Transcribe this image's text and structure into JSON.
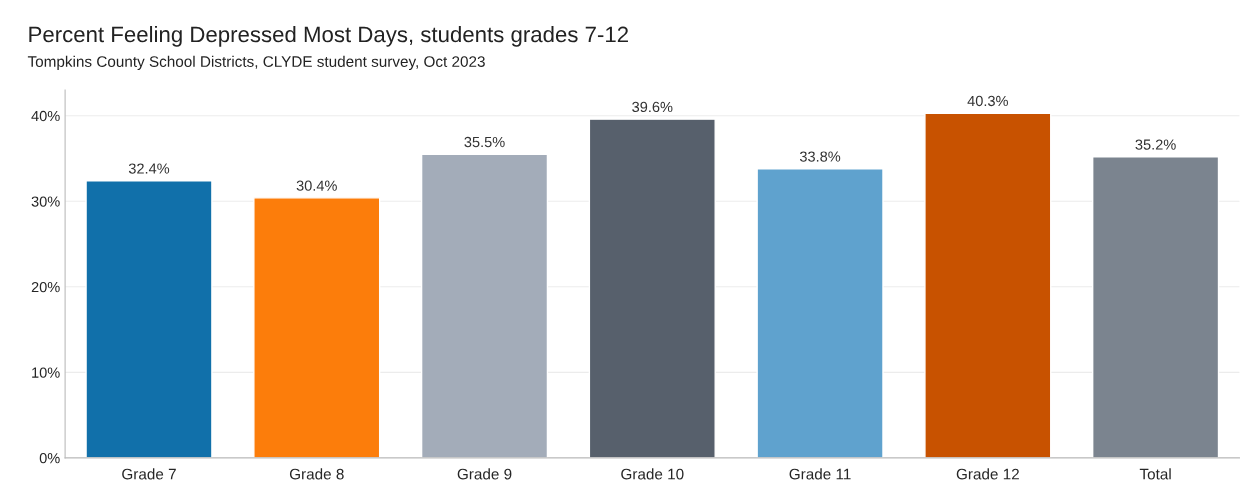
{
  "chart_data": {
    "type": "bar",
    "title": "Percent Feeling Depressed Most Days, students grades 7-12",
    "subtitle": "Tompkins County School Districts, CLYDE student survey, Oct 2023",
    "categories": [
      "Grade 7",
      "Grade 8",
      "Grade 9",
      "Grade 10",
      "Grade 11",
      "Grade 12",
      "Total"
    ],
    "values": [
      32.4,
      30.4,
      35.5,
      39.6,
      33.8,
      40.3,
      35.2
    ],
    "colors": [
      "#1170aa",
      "#fc7d0b",
      "#a3acb9",
      "#57606c",
      "#5fa2ce",
      "#c85200",
      "#7b848f"
    ],
    "value_labels": [
      "32.4%",
      "30.4%",
      "35.5%",
      "39.6%",
      "33.8%",
      "40.3%",
      "35.2%"
    ],
    "ylim": [
      0,
      43
    ],
    "yticks": [
      {
        "value": 0,
        "label": "0%"
      },
      {
        "value": 10,
        "label": "10%"
      },
      {
        "value": 20,
        "label": "20%"
      },
      {
        "value": 30,
        "label": "30%"
      },
      {
        "value": 40,
        "label": "40%"
      }
    ],
    "grid": "y",
    "legend": false
  }
}
